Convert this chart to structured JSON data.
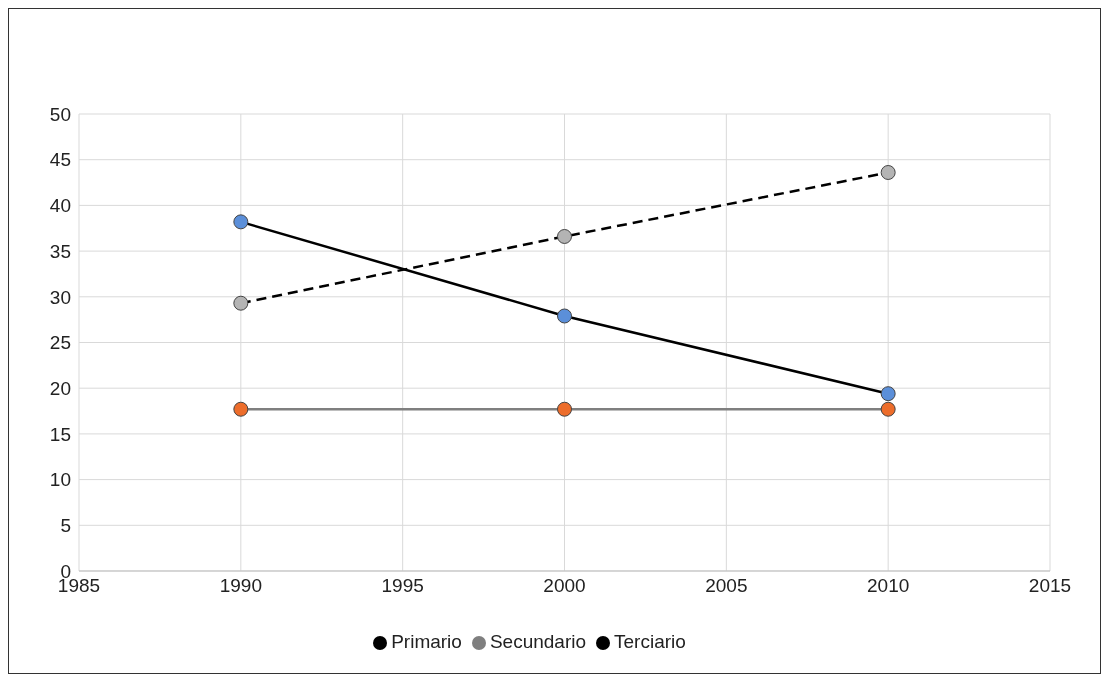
{
  "chart_data": {
    "type": "line",
    "x": [
      1990,
      2000,
      2010
    ],
    "series": [
      {
        "name": "Primario",
        "color": "#000000",
        "colors": [
          "#5b8fd9",
          "#5b8fd9",
          "#5b8fd9"
        ],
        "values": [
          38.2,
          27.9,
          19.4
        ],
        "line_style": "solid"
      },
      {
        "name": "Secundario",
        "color": "#7f7f7f",
        "colors": [
          "#ed6d2b",
          "#ed6d2b",
          "#ed6d2b"
        ],
        "values": [
          17.7,
          17.7,
          17.7
        ],
        "line_style": "solid"
      },
      {
        "name": "Terciario",
        "color": "#000000",
        "colors": [
          "#b4b4b4",
          "#b4b4b4",
          "#b4b4b4"
        ],
        "values": [
          29.3,
          36.6,
          43.6
        ],
        "line_style": "dashed"
      }
    ],
    "xlim": [
      1985,
      2015
    ],
    "xticks": [
      1985,
      1990,
      1995,
      2000,
      2005,
      2010,
      2015
    ],
    "ylim": [
      0,
      50
    ],
    "yticks": [
      0,
      5,
      10,
      15,
      20,
      25,
      30,
      35,
      40,
      45,
      50
    ],
    "grid": true,
    "legend": "bottom",
    "marker": "circle"
  }
}
